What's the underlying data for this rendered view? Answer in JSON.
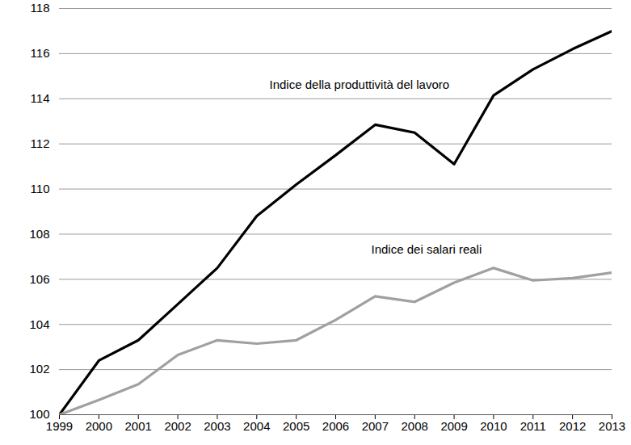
{
  "chart_data": {
    "type": "line",
    "x": [
      1999,
      2000,
      2001,
      2002,
      2003,
      2004,
      2005,
      2006,
      2007,
      2008,
      2009,
      2010,
      2011,
      2012,
      2013
    ],
    "series": [
      {
        "name": "Indice della produttività del lavoro",
        "color": "#000000",
        "values": [
          100,
          102.4,
          103.3,
          104.9,
          106.5,
          108.8,
          110.2,
          111.5,
          112.85,
          112.5,
          111.1,
          114.15,
          115.3,
          116.2,
          117.0
        ]
      },
      {
        "name": "Indice dei salari reali",
        "color": "#a0a0a0",
        "values": [
          100,
          100.65,
          101.35,
          102.65,
          103.3,
          103.15,
          103.3,
          104.2,
          105.25,
          105.0,
          105.85,
          106.5,
          105.95,
          106.05,
          106.3
        ]
      }
    ],
    "annotations": [
      {
        "text": "Indice della produttività del lavoro",
        "x": 2006.6,
        "y": 114.6
      },
      {
        "text": "Indice dei salari reali",
        "x": 2008.3,
        "y": 107.3
      }
    ],
    "xlim": [
      1999,
      2013
    ],
    "xticks": [
      1999,
      2000,
      2001,
      2002,
      2003,
      2004,
      2005,
      2006,
      2007,
      2008,
      2009,
      2010,
      2011,
      2012,
      2013
    ],
    "ylim": [
      100,
      118
    ],
    "yticks": [
      100,
      102,
      104,
      106,
      108,
      110,
      112,
      114,
      116,
      118
    ],
    "grid": true
  }
}
